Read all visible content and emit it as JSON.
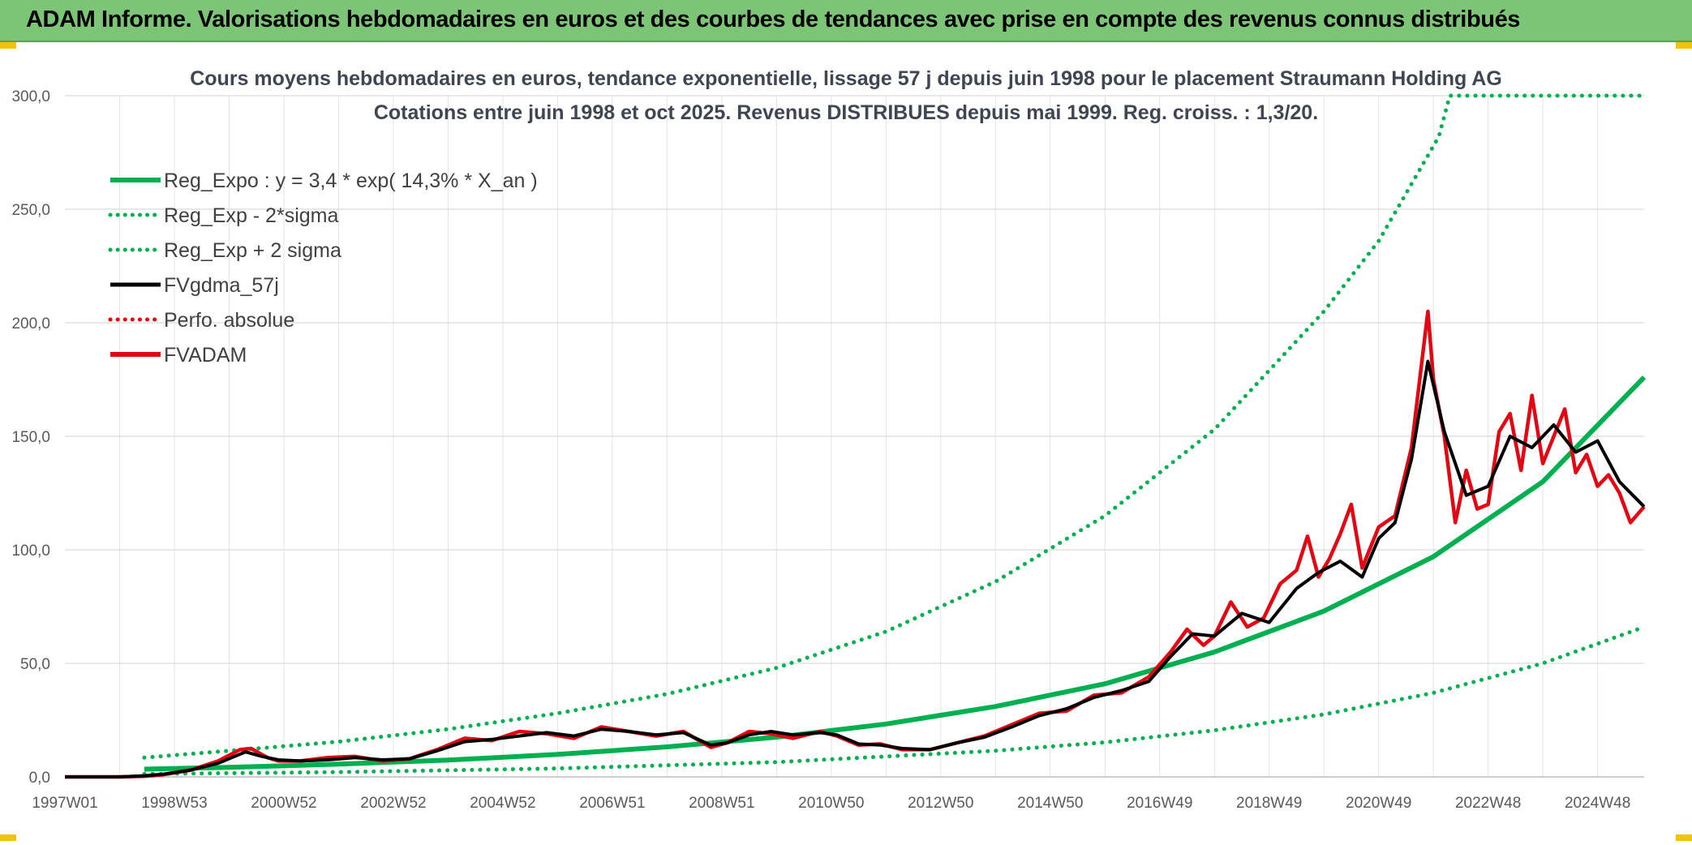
{
  "header": {
    "title": "ADAM Informe. Valorisations hebdomadaires en euros et des courbes de tendances avec prise en compte des revenus connus distribués"
  },
  "colors": {
    "header_bg": "#7cc576",
    "green": "#00b050",
    "red": "#e30613",
    "black": "#000000",
    "grid": "#d9d9d9"
  },
  "chart_data": {
    "type": "line",
    "title_line1": "Cours moyens hebdomadaires en euros, tendance exponentielle, lissage 57 j depuis juin 1998 pour le placement Straumann Holding AG",
    "title_line2": "Cotations entre juin 1998 et oct 2025. Revenus DISTRIBUES depuis mai 1999. Reg. croiss. : 1,3/20.",
    "ylim": [
      0,
      300
    ],
    "yticks": [
      "0,0",
      "50,0",
      "100,0",
      "150,0",
      "200,0",
      "250,0",
      "300,0"
    ],
    "ytick_values": [
      0,
      50,
      100,
      150,
      200,
      250,
      300
    ],
    "xlim": [
      1997.0,
      2025.85
    ],
    "xticks": [
      "1997W01",
      "1998W53",
      "2000W52",
      "2002W52",
      "2004W52",
      "2006W51",
      "2008W51",
      "2010W50",
      "2012W50",
      "2014W50",
      "2016W49",
      "2018W49",
      "2020W49",
      "2022W48",
      "2024W48"
    ],
    "xtick_values": [
      1997.0,
      1999.0,
      2001.0,
      2003.0,
      2005.0,
      2007.0,
      2009.0,
      2011.0,
      2013.0,
      2015.0,
      2017.0,
      2019.0,
      2021.0,
      2023.0,
      2025.0
    ],
    "legend": [
      {
        "label": "Reg_Expo : y = 3,4 * exp( 14,3% *  X_an )",
        "color": "#00b050",
        "style": "solid-thick"
      },
      {
        "label": "Reg_Exp - 2*sigma",
        "color": "#00b050",
        "style": "dotted"
      },
      {
        "label": "Reg_Exp + 2 sigma",
        "color": "#00b050",
        "style": "dotted"
      },
      {
        "label": "FVgdma_57j",
        "color": "#000000",
        "style": "solid"
      },
      {
        "label": "Perfo. absolue",
        "color": "#e30613",
        "style": "dotted"
      },
      {
        "label": "FVADAM",
        "color": "#e30613",
        "style": "solid-thick"
      }
    ],
    "series": [
      {
        "name": "Reg_Expo",
        "x": [
          1998.45,
          2000,
          2002,
          2004,
          2006,
          2008,
          2010,
          2012,
          2014,
          2016,
          2018,
          2020,
          2022,
          2024,
          2025.85
        ],
        "values": [
          3.4,
          4.2,
          5.6,
          7.4,
          9.9,
          13.2,
          17.5,
          23.3,
          31.0,
          41.0,
          55.0,
          73.0,
          97.0,
          130.0,
          176.0
        ]
      },
      {
        "name": "Reg_Exp - 2*sigma",
        "x": [
          1998.45,
          2002,
          2006,
          2010,
          2014,
          2016,
          2018,
          2020,
          2022,
          2024,
          2025.85
        ],
        "values": [
          1.3,
          2.1,
          3.7,
          6.5,
          11.5,
          15.2,
          20.5,
          27.5,
          37.0,
          50.0,
          66.0
        ]
      },
      {
        "name": "Reg_Exp + 2 sigma",
        "x": [
          1998.45,
          2000,
          2002,
          2004,
          2006,
          2008,
          2010,
          2012,
          2014,
          2016,
          2018,
          2020,
          2021,
          2022.1,
          2022.3,
          2025.85
        ],
        "values": [
          8.5,
          11.5,
          15.5,
          21.0,
          28.0,
          36.5,
          48.0,
          64.0,
          86.0,
          115.0,
          153.0,
          205.0,
          236.0,
          282.0,
          300.0,
          300.0
        ]
      },
      {
        "name": "FVgdma_57j",
        "x": [
          1997.0,
          1998.0,
          1998.45,
          1998.8,
          1999.3,
          1999.8,
          2000.3,
          2000.6,
          2000.9,
          2001.3,
          2001.8,
          2002.3,
          2002.8,
          2003.3,
          2003.8,
          2004.3,
          2004.8,
          2005.3,
          2005.8,
          2006.3,
          2006.8,
          2007.3,
          2007.8,
          2008.3,
          2008.8,
          2009.1,
          2009.5,
          2009.9,
          2010.3,
          2010.8,
          2011.1,
          2011.5,
          2011.9,
          2012.3,
          2012.8,
          2013.3,
          2013.8,
          2014.3,
          2014.8,
          2015.3,
          2015.8,
          2016.3,
          2016.8,
          2017.2,
          2017.6,
          2018.0,
          2018.5,
          2019.0,
          2019.5,
          2019.9,
          2020.3,
          2020.7,
          2021.0,
          2021.3,
          2021.6,
          2021.9,
          2022.2,
          2022.6,
          2023.0,
          2023.4,
          2023.8,
          2024.2,
          2024.6,
          2025.0,
          2025.4,
          2025.85
        ],
        "values": [
          0,
          0,
          0.5,
          1.2,
          3.0,
          6.0,
          11.0,
          9.0,
          7.5,
          7.0,
          7.5,
          8.5,
          7.5,
          8.0,
          11.5,
          15.5,
          16.5,
          18.0,
          19.5,
          18.0,
          21.0,
          20.0,
          18.5,
          19.5,
          14.0,
          15.0,
          18.5,
          20.0,
          18.5,
          19.5,
          18.5,
          14.5,
          14.0,
          12.5,
          12.0,
          15.0,
          17.5,
          22.0,
          27.0,
          30.0,
          35.0,
          38.0,
          42.0,
          53.0,
          63.0,
          62.0,
          72.0,
          68.0,
          83.0,
          90.0,
          95.0,
          88.0,
          105.0,
          112.0,
          140.0,
          183.0,
          152.0,
          124.0,
          128.0,
          150.0,
          145.0,
          155.0,
          143.0,
          148.0,
          130.0,
          119.0
        ]
      },
      {
        "name": "FVADAM",
        "x": [
          1997.0,
          1998.0,
          1998.45,
          1998.8,
          1999.3,
          1999.8,
          2000.2,
          2000.4,
          2000.7,
          2000.9,
          2001.3,
          2001.8,
          2002.3,
          2002.8,
          2003.3,
          2003.8,
          2004.3,
          2004.8,
          2005.3,
          2005.8,
          2006.3,
          2006.8,
          2007.3,
          2007.8,
          2008.3,
          2008.8,
          2009.1,
          2009.5,
          2009.9,
          2010.3,
          2010.8,
          2011.1,
          2011.5,
          2011.9,
          2012.3,
          2012.8,
          2013.3,
          2013.8,
          2014.3,
          2014.8,
          2015.3,
          2015.8,
          2016.3,
          2016.8,
          2017.2,
          2017.5,
          2017.8,
          2018.0,
          2018.3,
          2018.6,
          2018.9,
          2019.2,
          2019.5,
          2019.7,
          2019.9,
          2020.1,
          2020.3,
          2020.5,
          2020.7,
          2021.0,
          2021.3,
          2021.6,
          2021.9,
          2022.0,
          2022.2,
          2022.4,
          2022.6,
          2022.8,
          2023.0,
          2023.2,
          2023.4,
          2023.6,
          2023.8,
          2024.0,
          2024.2,
          2024.4,
          2024.6,
          2024.8,
          2025.0,
          2025.2,
          2025.4,
          2025.6,
          2025.85
        ],
        "values": [
          0,
          0,
          0.3,
          1.0,
          3.0,
          7.0,
          12.0,
          12.5,
          8.5,
          7.0,
          7.0,
          8.5,
          9.0,
          7.0,
          8.0,
          12.0,
          17.0,
          16.0,
          20.0,
          19.0,
          17.0,
          22.0,
          20.0,
          18.0,
          20.0,
          13.0,
          15.0,
          20.0,
          19.0,
          17.0,
          20.0,
          18.0,
          14.0,
          14.5,
          12.0,
          12.0,
          15.0,
          18.0,
          23.0,
          28.0,
          29.0,
          36.0,
          37.0,
          44.0,
          55.0,
          65.0,
          58.0,
          62.0,
          77.0,
          66.0,
          70.0,
          85.0,
          91.0,
          106.0,
          88.0,
          96.0,
          107.0,
          120.0,
          92.0,
          110.0,
          115.0,
          145.0,
          205.0,
          175.0,
          150.0,
          112.0,
          135.0,
          118.0,
          120.0,
          152.0,
          160.0,
          135.0,
          168.0,
          138.0,
          150.0,
          162.0,
          134.0,
          142.0,
          128.0,
          133.0,
          125.0,
          112.0,
          119.0
        ]
      }
    ]
  }
}
